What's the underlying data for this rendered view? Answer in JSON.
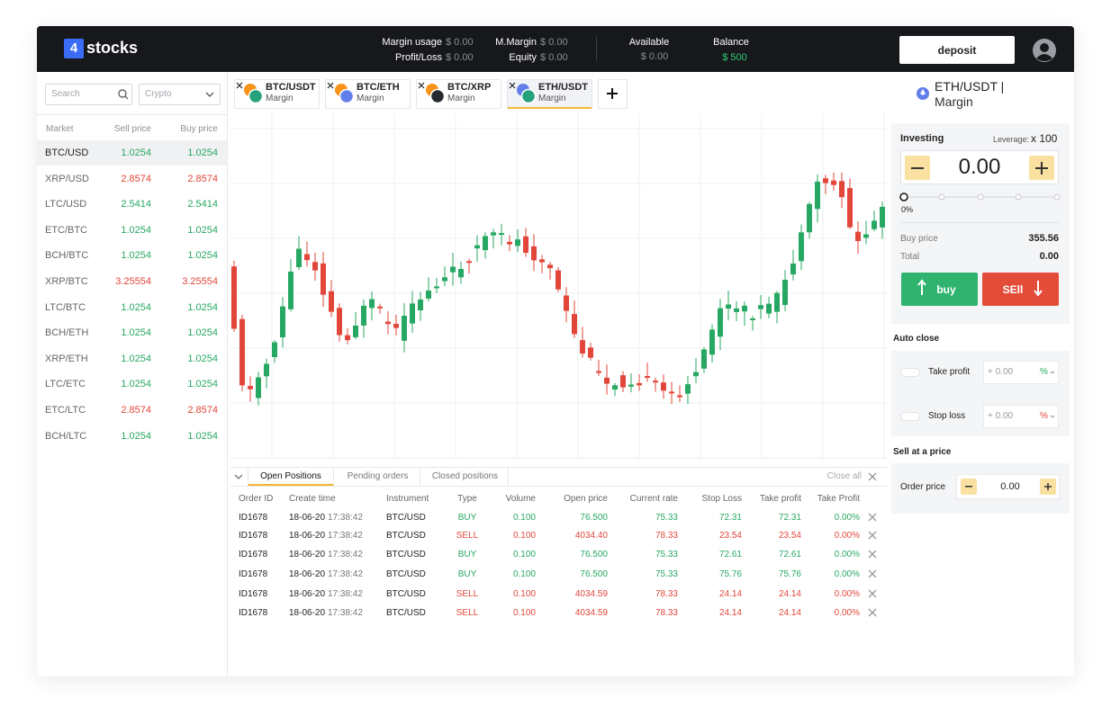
{
  "header": {
    "logo_digit": "4",
    "logo_text": "stocks",
    "stats": [
      {
        "label": "Margin usage",
        "value": "$ 0.00"
      },
      {
        "label": "Profit/Loss",
        "value": "$ 0.00"
      },
      {
        "label": "M.Margin",
        "value": "$ 0.00"
      },
      {
        "label": "Equity",
        "value": "$ 0.00"
      }
    ],
    "available": {
      "label": "Available",
      "value": "$ 0.00"
    },
    "balance": {
      "label": "Balance",
      "value": "$ 500",
      "color": "#2ecc71"
    },
    "deposit": "deposit"
  },
  "markets": {
    "search": "Search",
    "filter": "Crypto",
    "columns": [
      "Market",
      "Sell price",
      "Buy price"
    ],
    "rows": [
      {
        "market": "BTC/USD",
        "sell": "1.0254",
        "buy": "1.0254",
        "color": "#27a862"
      },
      {
        "market": "XRP/USD",
        "sell": "2.8574",
        "buy": "2.8574",
        "color": "#e2463a"
      },
      {
        "market": "LTC/USD",
        "sell": "2.5414",
        "buy": "2.5414",
        "color": "#27a862"
      },
      {
        "market": "ETC/BTC",
        "sell": "1.0254",
        "buy": "1.0254",
        "color": "#27a862"
      },
      {
        "market": "BCH/BTC",
        "sell": "1.0254",
        "buy": "1.0254",
        "color": "#27a862"
      },
      {
        "market": "XRP/BTC",
        "sell": "3.25554",
        "buy": "3.25554",
        "color": "#e2463a"
      },
      {
        "market": "LTC/BTC",
        "sell": "1.0254",
        "buy": "1.0254",
        "color": "#27a862"
      },
      {
        "market": "BCH/ETH",
        "sell": "1.0254",
        "buy": "1.0254",
        "color": "#27a862"
      },
      {
        "market": "XRP/ETH",
        "sell": "1.0254",
        "buy": "1.0254",
        "color": "#27a862"
      },
      {
        "market": "LTC/ETC",
        "sell": "1.0254",
        "buy": "1.0254",
        "color": "#27a862"
      },
      {
        "market": "ETC/LTC",
        "sell": "2.8574",
        "buy": "2.8574",
        "color": "#e2463a"
      },
      {
        "market": "BCH/LTC",
        "sell": "1.0254",
        "buy": "1.0254",
        "color": "#27a862"
      }
    ]
  },
  "tabs": [
    {
      "pair": "BTC/USDT",
      "mode": "Margin",
      "colors": [
        "#f7931a",
        "#26a17b"
      ]
    },
    {
      "pair": "BTC/ETH",
      "mode": "Margin",
      "colors": [
        "#f7931a",
        "#627eea"
      ]
    },
    {
      "pair": "BTC/XRP",
      "mode": "Margin",
      "colors": [
        "#f7931a",
        "#23292f"
      ]
    },
    {
      "pair": "ETH/USDT",
      "mode": "Margin",
      "colors": [
        "#627eea",
        "#26a17b"
      ]
    }
  ],
  "positions": {
    "tabs": [
      "Open Positions",
      "Pending orders",
      "Closed positions"
    ],
    "close_all": "Close all",
    "columns": [
      "Order ID",
      "Create time",
      "Instrument",
      "Type",
      "Volume",
      "Open price",
      "Current rate",
      "Stop Loss",
      "Take profit",
      "Take Profit"
    ],
    "rows": [
      {
        "id": "ID1678",
        "date": "18-06-20",
        "time": "17:38:42",
        "instrument": "BTC/USD",
        "type": "BUY",
        "volume": "0.100",
        "open": "76.500",
        "rate": "75.33",
        "stop": "72.31",
        "take": "72.31",
        "pct": "0.00%",
        "color": "#27a862"
      },
      {
        "id": "ID1678",
        "date": "18-06-20",
        "time": "17:38:42",
        "instrument": "BTC/USD",
        "type": "SELL",
        "volume": "0.100",
        "open": "4034.40",
        "rate": "78.33",
        "stop": "23.54",
        "take": "23.54",
        "pct": "0.00%",
        "color": "#e2463a"
      },
      {
        "id": "ID1678",
        "date": "18-06-20",
        "time": "17:38:42",
        "instrument": "BTC/USD",
        "type": "BUY",
        "volume": "0.100",
        "open": "76.500",
        "rate": "75.33",
        "stop": "72.61",
        "take": "72.61",
        "pct": "0.00%",
        "color": "#27a862"
      },
      {
        "id": "ID1678",
        "date": "18-06-20",
        "time": "17:38:42",
        "instrument": "BTC/USD",
        "type": "BUY",
        "volume": "0.100",
        "open": "76.500",
        "rate": "75.33",
        "stop": "75.76",
        "take": "75.76",
        "pct": "0.00%",
        "color": "#27a862"
      },
      {
        "id": "ID1678",
        "date": "18-06-20",
        "time": "17:38:42",
        "instrument": "BTC/USD",
        "type": "SELL",
        "volume": "0.100",
        "open": "4034.59",
        "rate": "78.33",
        "stop": "24.14",
        "take": "24.14",
        "pct": "0.00%",
        "color": "#e2463a"
      },
      {
        "id": "ID1678",
        "date": "18-06-20",
        "time": "17:38:42",
        "instrument": "BTC/USD",
        "type": "SELL",
        "volume": "0.100",
        "open": "4034.59",
        "rate": "78.33",
        "stop": "24.14",
        "take": "24.14",
        "pct": "0.00%",
        "color": "#e2463a"
      }
    ]
  },
  "trade": {
    "pair": "ETH/USDT |",
    "mode": "Margin",
    "investing": "Investing",
    "leverage_label": "Leverage:",
    "leverage": "x 100",
    "amount": "0.00",
    "slider": "0%",
    "buy_price_label": "Buy price",
    "buy_price": "355.56",
    "total_label": "Total",
    "total": "0.00",
    "buy": "buy",
    "sell": "SEll",
    "auto_close": "Auto close",
    "take_profit": {
      "label": "Take profit",
      "value": "+ 0.00",
      "unit": "%",
      "color": "#27a862"
    },
    "stop_loss": {
      "label": "Stop loss",
      "value": "+ 0.00",
      "unit": "%",
      "color": "#e2463a"
    },
    "sell_at": "Sell at a price",
    "order_price": "Order price",
    "order_value": "0.00"
  }
}
